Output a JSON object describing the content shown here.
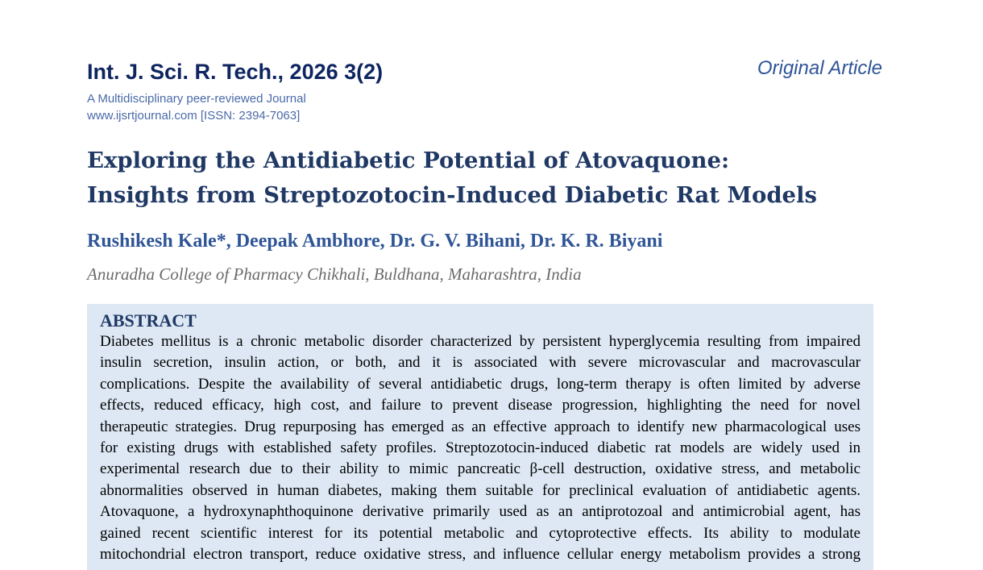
{
  "journal": {
    "title": "Int. J. Sci. R. Tech., 2026 3(2)",
    "subtitle": "A Multidisciplinary peer-reviewed Journal",
    "website": "www.ijsrtjournal.com [ISSN: 2394-7063]",
    "article_type": "Original Article"
  },
  "paper": {
    "title_lines": [
      "Exploring the Antidiabetic Potential of Atovaquone:",
      "Insights from Streptozotocin-Induced Diabetic Rat Models"
    ],
    "authors": "Rushikesh Kale*, Deepak Ambhore, Dr. G. V. Bihani, Dr. K. R. Biyani",
    "affiliation": "Anuradha College of Pharmacy Chikhali, Buldhana, Maharashtra, India"
  },
  "abstract": {
    "heading": "ABSTRACT",
    "lines": [
      "Diabetes mellitus is a chronic metabolic disorder characterized by persistent hyperglycemia resulting from impaired",
      "insulin secretion, insulin action, or both, and it is associated with severe microvascular and macrovascular",
      "complications. Despite the availability of several antidiabetic drugs, long-term therapy is often limited by adverse",
      "effects, reduced efficacy, high cost, and failure to prevent disease progression, highlighting the need for novel",
      "therapeutic strategies. Drug repurposing has emerged as an effective approach to identify new pharmacological uses",
      "for existing drugs with established safety profiles. Streptozotocin-induced diabetic rat models are widely used in",
      "experimental research due to their ability to mimic pancreatic β-cell destruction, oxidative stress, and metabolic",
      "abnormalities observed in human diabetes, making them suitable for preclinical evaluation of antidiabetic agents.",
      "Atovaquone, a hydroxynaphthoquinone derivative primarily used as an antiprotozoal and antimicrobial agent, has",
      "gained recent scientific interest for its potential metabolic and cytoprotective effects. Its ability to modulate",
      "mitochondrial electron transport, reduce oxidative stress, and influence cellular energy metabolism provides a strong"
    ]
  }
}
